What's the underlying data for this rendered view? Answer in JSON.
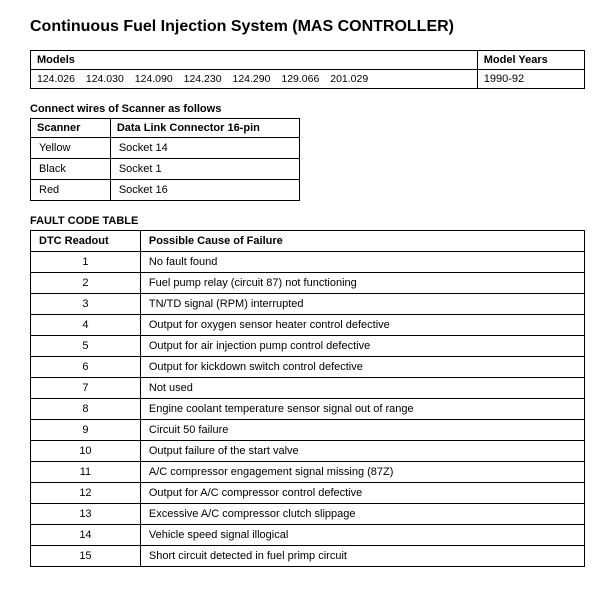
{
  "title": "Continuous Fuel Injection System (MAS CONTROLLER)",
  "models_table": {
    "headers": {
      "models": "Models",
      "years": "Model Years"
    },
    "models": "124.026 124.030 124.090 124.230 124.290 129.066 201.029",
    "years": "1990-92"
  },
  "scanner_section": {
    "label": "Connect wires of Scanner as follows",
    "headers": {
      "scanner": "Scanner",
      "dlc": "Data Link Connector 16-pin"
    },
    "rows": [
      {
        "scanner": "Yellow",
        "dlc": "Socket 14"
      },
      {
        "scanner": "Black",
        "dlc": "Socket 1"
      },
      {
        "scanner": "Red",
        "dlc": "Socket 16"
      }
    ]
  },
  "fault_section": {
    "label": "FAULT CODE TABLE",
    "headers": {
      "dtc": "DTC Readout",
      "cause": "Possible Cause of Failure"
    },
    "rows": [
      {
        "dtc": "1",
        "cause": "No fault found"
      },
      {
        "dtc": "2",
        "cause": "Fuel pump relay (circuit 87) not functioning"
      },
      {
        "dtc": "3",
        "cause": "TN/TD signal (RPM) interrupted"
      },
      {
        "dtc": "4",
        "cause": "Output for oxygen sensor heater control defective"
      },
      {
        "dtc": "5",
        "cause": "Output for air injection pump control defective"
      },
      {
        "dtc": "6",
        "cause": "Output for kickdown switch control defective"
      },
      {
        "dtc": "7",
        "cause": "Not used"
      },
      {
        "dtc": "8",
        "cause": "Engine coolant temperature sensor signal out of range"
      },
      {
        "dtc": "9",
        "cause": "Circuit 50 failure"
      },
      {
        "dtc": "10",
        "cause": "Output failure of the start valve"
      },
      {
        "dtc": "11",
        "cause": "A/C compressor engagement signal missing (87Z)"
      },
      {
        "dtc": "12",
        "cause": "Output for A/C compressor control defective"
      },
      {
        "dtc": "13",
        "cause": "Excessive A/C compressor clutch slippage"
      },
      {
        "dtc": "14",
        "cause": "Vehicle speed signal illogical"
      },
      {
        "dtc": "15",
        "cause": "Short circuit detected in fuel primp circuit"
      }
    ]
  }
}
